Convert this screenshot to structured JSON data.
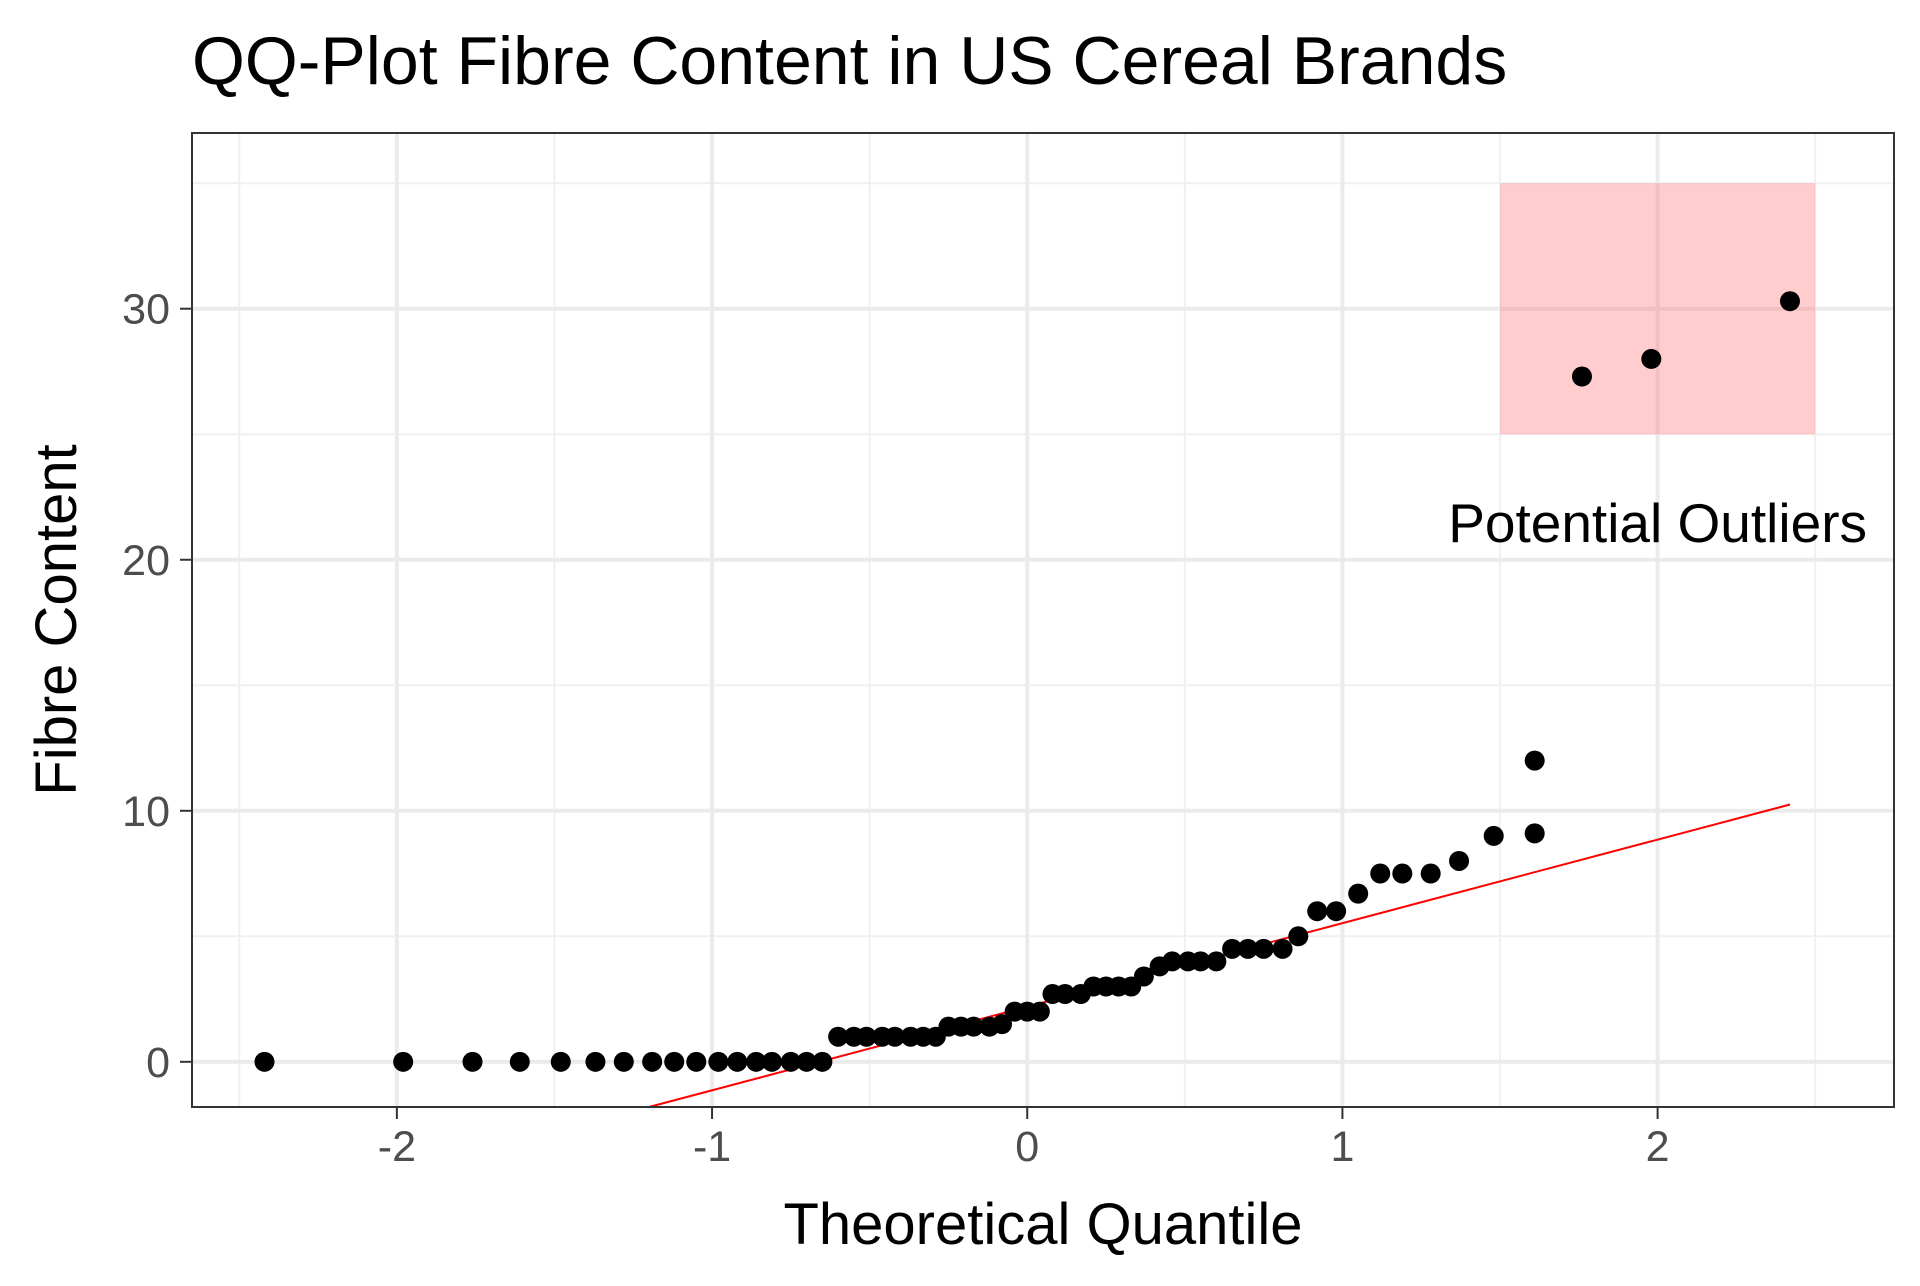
{
  "chart_data": {
    "type": "scatter",
    "title": "QQ-Plot Fibre Content in US Cereal Brands",
    "xlabel": "Theoretical Quantile",
    "ylabel": "Fibre Content",
    "xlim": [
      -2.65,
      2.75
    ],
    "ylim": [
      -1.8,
      37.0
    ],
    "x_ticks": [
      -2,
      -1,
      0,
      1,
      2
    ],
    "y_ticks": [
      0,
      10,
      20,
      30
    ],
    "grid": true,
    "point_color": "#000000",
    "line_color": "#ff0000",
    "highlight_color": "#ff6666",
    "points": [
      {
        "x": -2.42,
        "y": 0
      },
      {
        "x": -1.98,
        "y": 0
      },
      {
        "x": -1.76,
        "y": 0
      },
      {
        "x": -1.61,
        "y": 0
      },
      {
        "x": -1.48,
        "y": 0
      },
      {
        "x": -1.37,
        "y": 0
      },
      {
        "x": -1.28,
        "y": 0
      },
      {
        "x": -1.19,
        "y": 0
      },
      {
        "x": -1.12,
        "y": 0
      },
      {
        "x": -1.05,
        "y": 0
      },
      {
        "x": -0.98,
        "y": 0
      },
      {
        "x": -0.92,
        "y": 0
      },
      {
        "x": -0.86,
        "y": 0
      },
      {
        "x": -0.81,
        "y": 0
      },
      {
        "x": -0.75,
        "y": 0
      },
      {
        "x": -0.7,
        "y": 0
      },
      {
        "x": -0.65,
        "y": 0
      },
      {
        "x": -0.6,
        "y": 1
      },
      {
        "x": -0.55,
        "y": 1
      },
      {
        "x": -0.51,
        "y": 1
      },
      {
        "x": -0.46,
        "y": 1
      },
      {
        "x": -0.42,
        "y": 1
      },
      {
        "x": -0.37,
        "y": 1
      },
      {
        "x": -0.33,
        "y": 1
      },
      {
        "x": -0.29,
        "y": 1
      },
      {
        "x": -0.25,
        "y": 1.4
      },
      {
        "x": -0.21,
        "y": 1.4
      },
      {
        "x": -0.17,
        "y": 1.4
      },
      {
        "x": -0.12,
        "y": 1.4
      },
      {
        "x": -0.08,
        "y": 1.5
      },
      {
        "x": -0.04,
        "y": 2
      },
      {
        "x": 0.0,
        "y": 2
      },
      {
        "x": 0.04,
        "y": 2
      },
      {
        "x": 0.08,
        "y": 2.7
      },
      {
        "x": 0.12,
        "y": 2.7
      },
      {
        "x": 0.17,
        "y": 2.7
      },
      {
        "x": 0.21,
        "y": 3
      },
      {
        "x": 0.25,
        "y": 3
      },
      {
        "x": 0.29,
        "y": 3
      },
      {
        "x": 0.33,
        "y": 3
      },
      {
        "x": 0.37,
        "y": 3.4
      },
      {
        "x": 0.42,
        "y": 3.8
      },
      {
        "x": 0.46,
        "y": 4
      },
      {
        "x": 0.51,
        "y": 4
      },
      {
        "x": 0.55,
        "y": 4
      },
      {
        "x": 0.6,
        "y": 4
      },
      {
        "x": 0.65,
        "y": 4.5
      },
      {
        "x": 0.7,
        "y": 4.5
      },
      {
        "x": 0.75,
        "y": 4.5
      },
      {
        "x": 0.81,
        "y": 4.5
      },
      {
        "x": 0.86,
        "y": 5
      },
      {
        "x": 0.92,
        "y": 6
      },
      {
        "x": 0.98,
        "y": 6
      },
      {
        "x": 1.05,
        "y": 6.7
      },
      {
        "x": 1.12,
        "y": 7.5
      },
      {
        "x": 1.19,
        "y": 7.5
      },
      {
        "x": 1.28,
        "y": 7.5
      },
      {
        "x": 1.37,
        "y": 8
      },
      {
        "x": 1.48,
        "y": 9
      },
      {
        "x": 1.61,
        "y": 9.1
      },
      {
        "x": 1.61,
        "y": 12
      },
      {
        "x": 1.76,
        "y": 27.3
      },
      {
        "x": 1.98,
        "y": 28
      },
      {
        "x": 2.42,
        "y": 30.3
      }
    ],
    "reference_line": {
      "x": [
        -1.2,
        2.42
      ],
      "y": [
        -1.8,
        10.25
      ]
    },
    "highlight_region": {
      "x": [
        1.5,
        2.5
      ],
      "y": [
        25,
        35
      ]
    },
    "annotation": {
      "text": "Potential Outliers",
      "x": 2.0,
      "y": 21.5
    }
  }
}
